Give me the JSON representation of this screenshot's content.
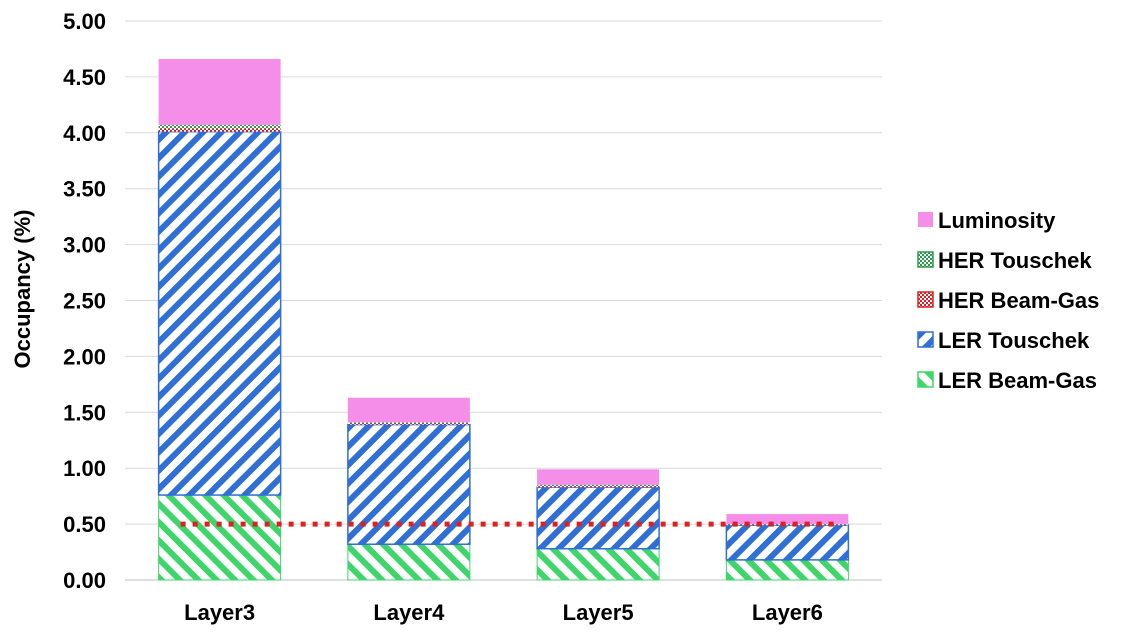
{
  "chart_data": {
    "type": "bar",
    "stacked": true,
    "title": "",
    "xlabel": "",
    "ylabel": "Occupancy (%)",
    "ylim": [
      0,
      5
    ],
    "yticks": [
      "0.00",
      "0.50",
      "1.00",
      "1.50",
      "2.00",
      "2.50",
      "3.00",
      "3.50",
      "4.00",
      "4.50",
      "5.00"
    ],
    "grid": "horizontal",
    "legend_position": "right",
    "categories": [
      "Layer3",
      "Layer4",
      "Layer5",
      "Layer6"
    ],
    "series": [
      {
        "name": "LER Beam-Gas",
        "values": [
          0.76,
          0.32,
          0.28,
          0.18
        ],
        "color": "#3ed66a",
        "pattern": "diag-back"
      },
      {
        "name": "LER Touschek",
        "values": [
          3.25,
          1.07,
          0.55,
          0.31
        ],
        "color": "#2f6fd6",
        "pattern": "diag-fwd"
      },
      {
        "name": "HER Beam-Gas",
        "values": [
          0.03,
          0.01,
          0.01,
          0.005
        ],
        "color": "#e02020",
        "pattern": "check"
      },
      {
        "name": "HER Touschek",
        "values": [
          0.03,
          0.01,
          0.01,
          0.005
        ],
        "color": "#2a9d4a",
        "pattern": "check"
      },
      {
        "name": "Luminosity",
        "values": [
          0.59,
          0.22,
          0.14,
          0.09
        ],
        "color": "#f58ee8",
        "pattern": "solid"
      }
    ],
    "reference_line": {
      "value": 0.5,
      "color": "#e02020",
      "style": "dotted"
    }
  }
}
